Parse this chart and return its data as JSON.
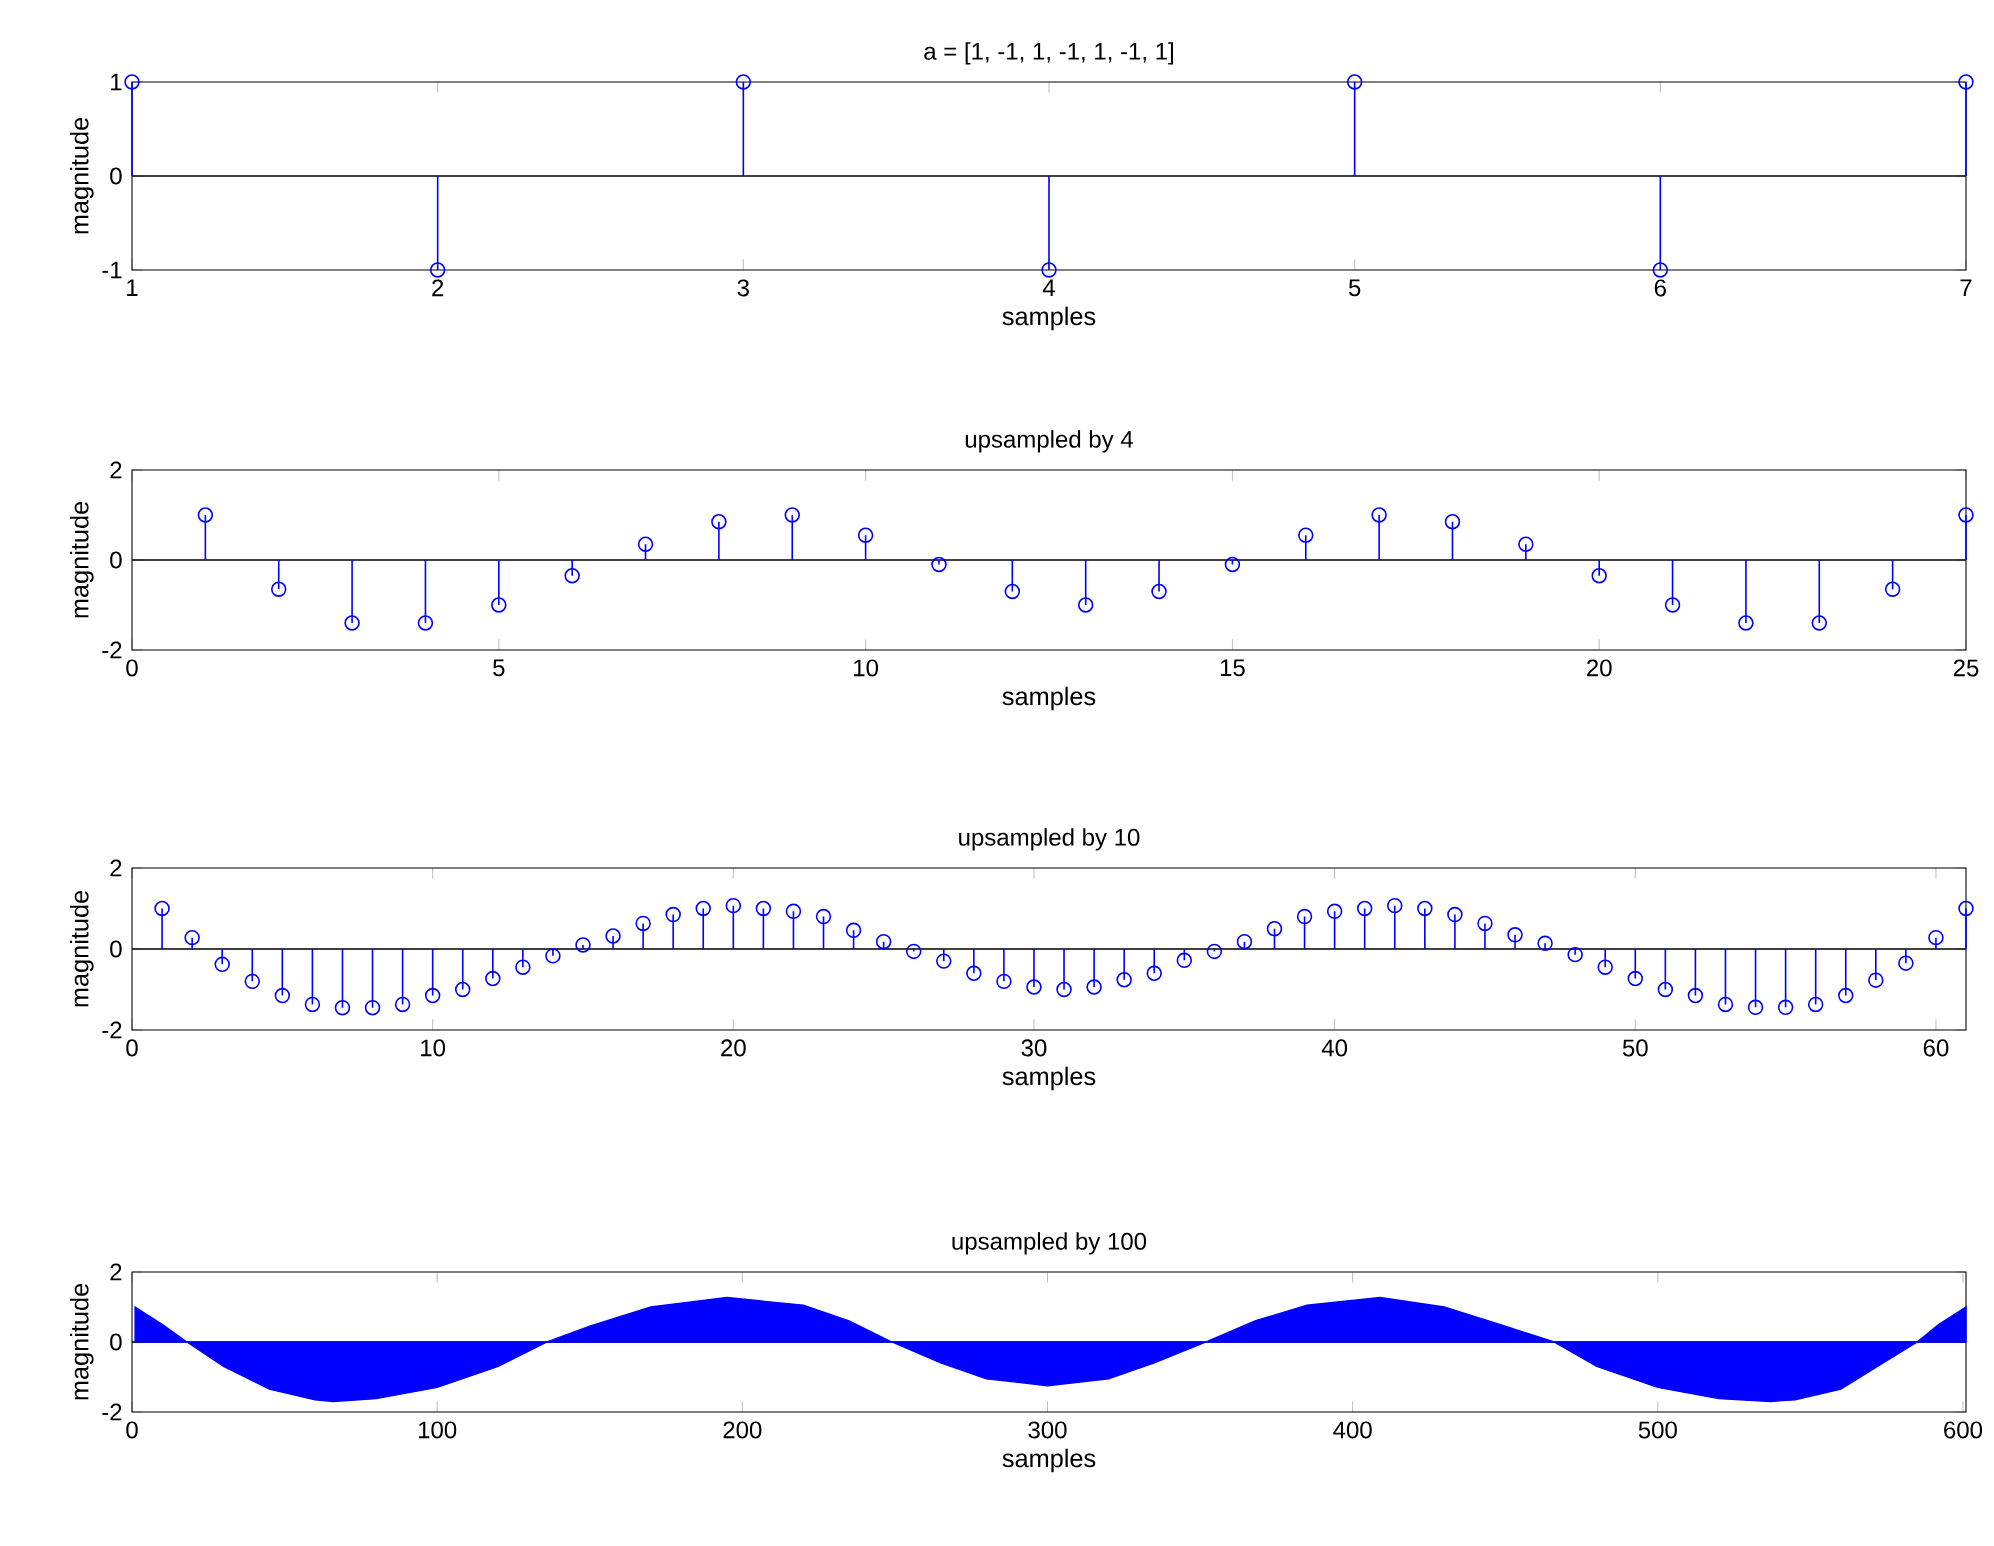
{
  "chart_data": [
    {
      "type": "lollipop",
      "title": "a = [1, -1, 1, -1, 1, -1, 1]",
      "xlabel": "samples",
      "ylabel": "magnitude",
      "marker": "circle",
      "grid": false,
      "x": [
        1,
        2,
        3,
        4,
        5,
        6,
        7
      ],
      "series": [
        {
          "color": "#0000ff",
          "values": [
            1,
            -1,
            1,
            -1,
            1,
            -1,
            1
          ]
        }
      ],
      "xlim": [
        1,
        7
      ],
      "xticks": [
        1,
        2,
        3,
        4,
        5,
        6,
        7
      ],
      "ylim": [
        -1,
        1
      ],
      "yticks": [
        -1,
        0,
        1
      ],
      "ref_lines": [
        {
          "axis": "y",
          "value": 0,
          "color": "#000000"
        }
      ]
    },
    {
      "type": "lollipop",
      "title": "upsampled by 4",
      "xlabel": "samples",
      "ylabel": "magnitude",
      "marker": "circle",
      "grid": false,
      "x": [
        1,
        2,
        3,
        4,
        5,
        6,
        7,
        8,
        9,
        10,
        11,
        12,
        13,
        14,
        15,
        16,
        17,
        18,
        19,
        20,
        21,
        22,
        23,
        24,
        25
      ],
      "series": [
        {
          "color": "#0000ff",
          "values": [
            1.0,
            -0.65,
            -1.4,
            -1.4,
            -1.0,
            -0.35,
            0.35,
            0.85,
            1.0,
            0.55,
            -0.1,
            -0.7,
            -1.0,
            -0.7,
            -0.1,
            0.55,
            1.0,
            0.85,
            0.35,
            -0.35,
            -1.0,
            -1.4,
            -1.4,
            -0.65,
            1.0
          ]
        }
      ],
      "xlim": [
        0,
        25
      ],
      "xticks": [
        0,
        5,
        10,
        15,
        20,
        25
      ],
      "ylim": [
        -2,
        2
      ],
      "yticks": [
        -2,
        0,
        2
      ],
      "ref_lines": [
        {
          "axis": "y",
          "value": 0,
          "color": "#000000"
        }
      ]
    },
    {
      "type": "lollipop",
      "title": "upsampled by 10",
      "xlabel": "samples",
      "ylabel": "magnitude",
      "marker": "circle",
      "grid": false,
      "x": [
        1,
        2,
        3,
        4,
        5,
        6,
        7,
        8,
        9,
        10,
        11,
        12,
        13,
        14,
        15,
        16,
        17,
        18,
        19,
        20,
        21,
        22,
        23,
        24,
        25,
        26,
        27,
        28,
        29,
        30,
        31,
        32,
        33,
        34,
        35,
        36,
        37,
        38,
        39,
        40,
        41,
        42,
        43,
        44,
        45,
        46,
        47,
        48,
        49,
        50,
        51,
        52,
        53,
        54,
        55,
        56,
        57,
        58,
        59,
        60,
        61
      ],
      "series": [
        {
          "color": "#0000ff",
          "values": [
            1.0,
            0.28,
            -0.38,
            -0.8,
            -1.15,
            -1.37,
            -1.45,
            -1.45,
            -1.37,
            -1.15,
            -1.0,
            -0.73,
            -0.45,
            -0.17,
            0.1,
            0.32,
            0.63,
            0.85,
            1.0,
            1.07,
            1.0,
            0.93,
            0.8,
            0.46,
            0.18,
            -0.06,
            -0.3,
            -0.6,
            -0.8,
            -0.94,
            -1.0,
            -0.94,
            -0.76,
            -0.6,
            -0.28,
            -0.06,
            0.18,
            0.5,
            0.8,
            0.93,
            1.0,
            1.07,
            1.0,
            0.85,
            0.63,
            0.35,
            0.14,
            -0.14,
            -0.45,
            -0.73,
            -1.0,
            -1.15,
            -1.37,
            -1.44,
            -1.44,
            -1.37,
            -1.15,
            -0.77,
            -0.35,
            0.28,
            1.0
          ]
        }
      ],
      "xlim": [
        0,
        61
      ],
      "xticks": [
        0,
        10,
        20,
        30,
        40,
        50,
        60
      ],
      "ylim": [
        -2,
        2
      ],
      "yticks": [
        -2,
        0,
        2
      ],
      "ref_lines": [
        {
          "axis": "y",
          "value": 0,
          "color": "#000000"
        }
      ]
    },
    {
      "type": "area",
      "title": "upsampled by 100",
      "xlabel": "samples",
      "ylabel": "magnitude",
      "grid": false,
      "x": [
        1,
        10,
        18,
        30,
        45,
        60,
        66,
        80,
        100,
        120,
        136,
        150,
        170,
        195,
        220,
        235,
        249,
        265,
        280,
        300,
        320,
        335,
        352,
        368,
        385,
        409,
        430,
        450,
        466,
        480,
        500,
        520,
        537,
        545,
        560,
        572,
        585,
        592,
        601
      ],
      "series": [
        {
          "color": "#0000ff",
          "values": [
            1.0,
            0.5,
            0,
            -0.7,
            -1.35,
            -1.65,
            -1.7,
            -1.62,
            -1.3,
            -0.7,
            0,
            0.45,
            1.0,
            1.27,
            1.05,
            0.6,
            0,
            -0.6,
            -1.05,
            -1.25,
            -1.05,
            -0.6,
            0,
            0.6,
            1.05,
            1.27,
            1.0,
            0.45,
            0,
            -0.7,
            -1.3,
            -1.62,
            -1.7,
            -1.65,
            -1.35,
            -0.7,
            0,
            0.5,
            1.0
          ]
        }
      ],
      "xlim": [
        0,
        601
      ],
      "xticks": [
        0,
        100,
        200,
        300,
        400,
        500,
        600
      ],
      "ylim": [
        -2,
        2
      ],
      "yticks": [
        -2,
        0,
        2
      ],
      "ref_lines": [
        {
          "axis": "y",
          "value": 0,
          "color": "#000000"
        }
      ]
    }
  ]
}
